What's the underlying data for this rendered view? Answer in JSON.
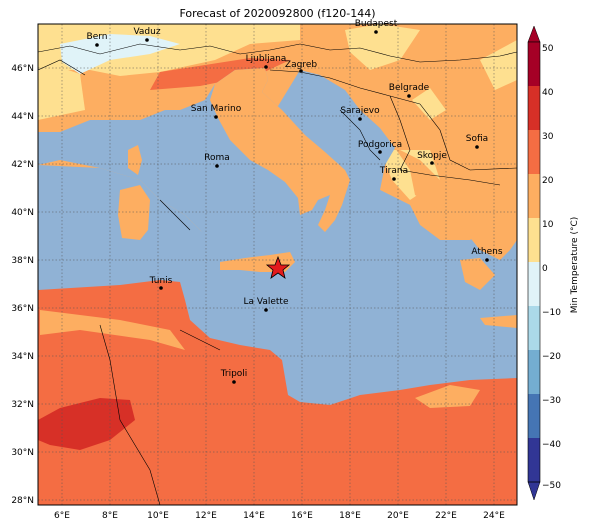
{
  "title": "Forecast of 2020092800 (f120-144)",
  "colorbar": {
    "label": "Min Temperature (°C)",
    "ticks": [
      "50",
      "40",
      "30",
      "20",
      "10",
      "0",
      "−10",
      "−20",
      "−30",
      "−40",
      "−50"
    ],
    "colors": [
      "#a50026",
      "#d73027",
      "#f46d43",
      "#fdae61",
      "#fee090",
      "#e0f3f8",
      "#abd9e9",
      "#74add1",
      "#4575b4",
      "#313695"
    ]
  },
  "axes": {
    "lat_labels": [
      "46°N",
      "44°N",
      "42°N",
      "40°N",
      "38°N",
      "36°N",
      "34°N",
      "32°N",
      "30°N",
      "28°N"
    ],
    "lon_labels": [
      "6°E",
      "8°E",
      "10°E",
      "12°E",
      "14°E",
      "16°E",
      "18°E",
      "20°E",
      "22°E",
      "24°E"
    ]
  },
  "colors": {
    "sea": "#90b2d5",
    "land_20_30": "#fdae61",
    "land_30_40": "#f46d43",
    "land_40_50": "#d73027",
    "land_10_20": "#fee090",
    "cold": "#e0f3f8"
  },
  "cities": [
    {
      "name": "Bern"
    },
    {
      "name": "Vaduz"
    },
    {
      "name": "Budapest"
    },
    {
      "name": "Ljubljana"
    },
    {
      "name": "Zagreb"
    },
    {
      "name": "Belgrade"
    },
    {
      "name": "San Marino"
    },
    {
      "name": "Sarajevo"
    },
    {
      "name": "Roma"
    },
    {
      "name": "Podgorica"
    },
    {
      "name": "Sofia"
    },
    {
      "name": "Skopje"
    },
    {
      "name": "Tirana"
    },
    {
      "name": "Athens"
    },
    {
      "name": "Tunis"
    },
    {
      "name": "La Valette"
    },
    {
      "name": "Tripoli"
    }
  ],
  "marker": {
    "name": "forecast-location-star"
  }
}
